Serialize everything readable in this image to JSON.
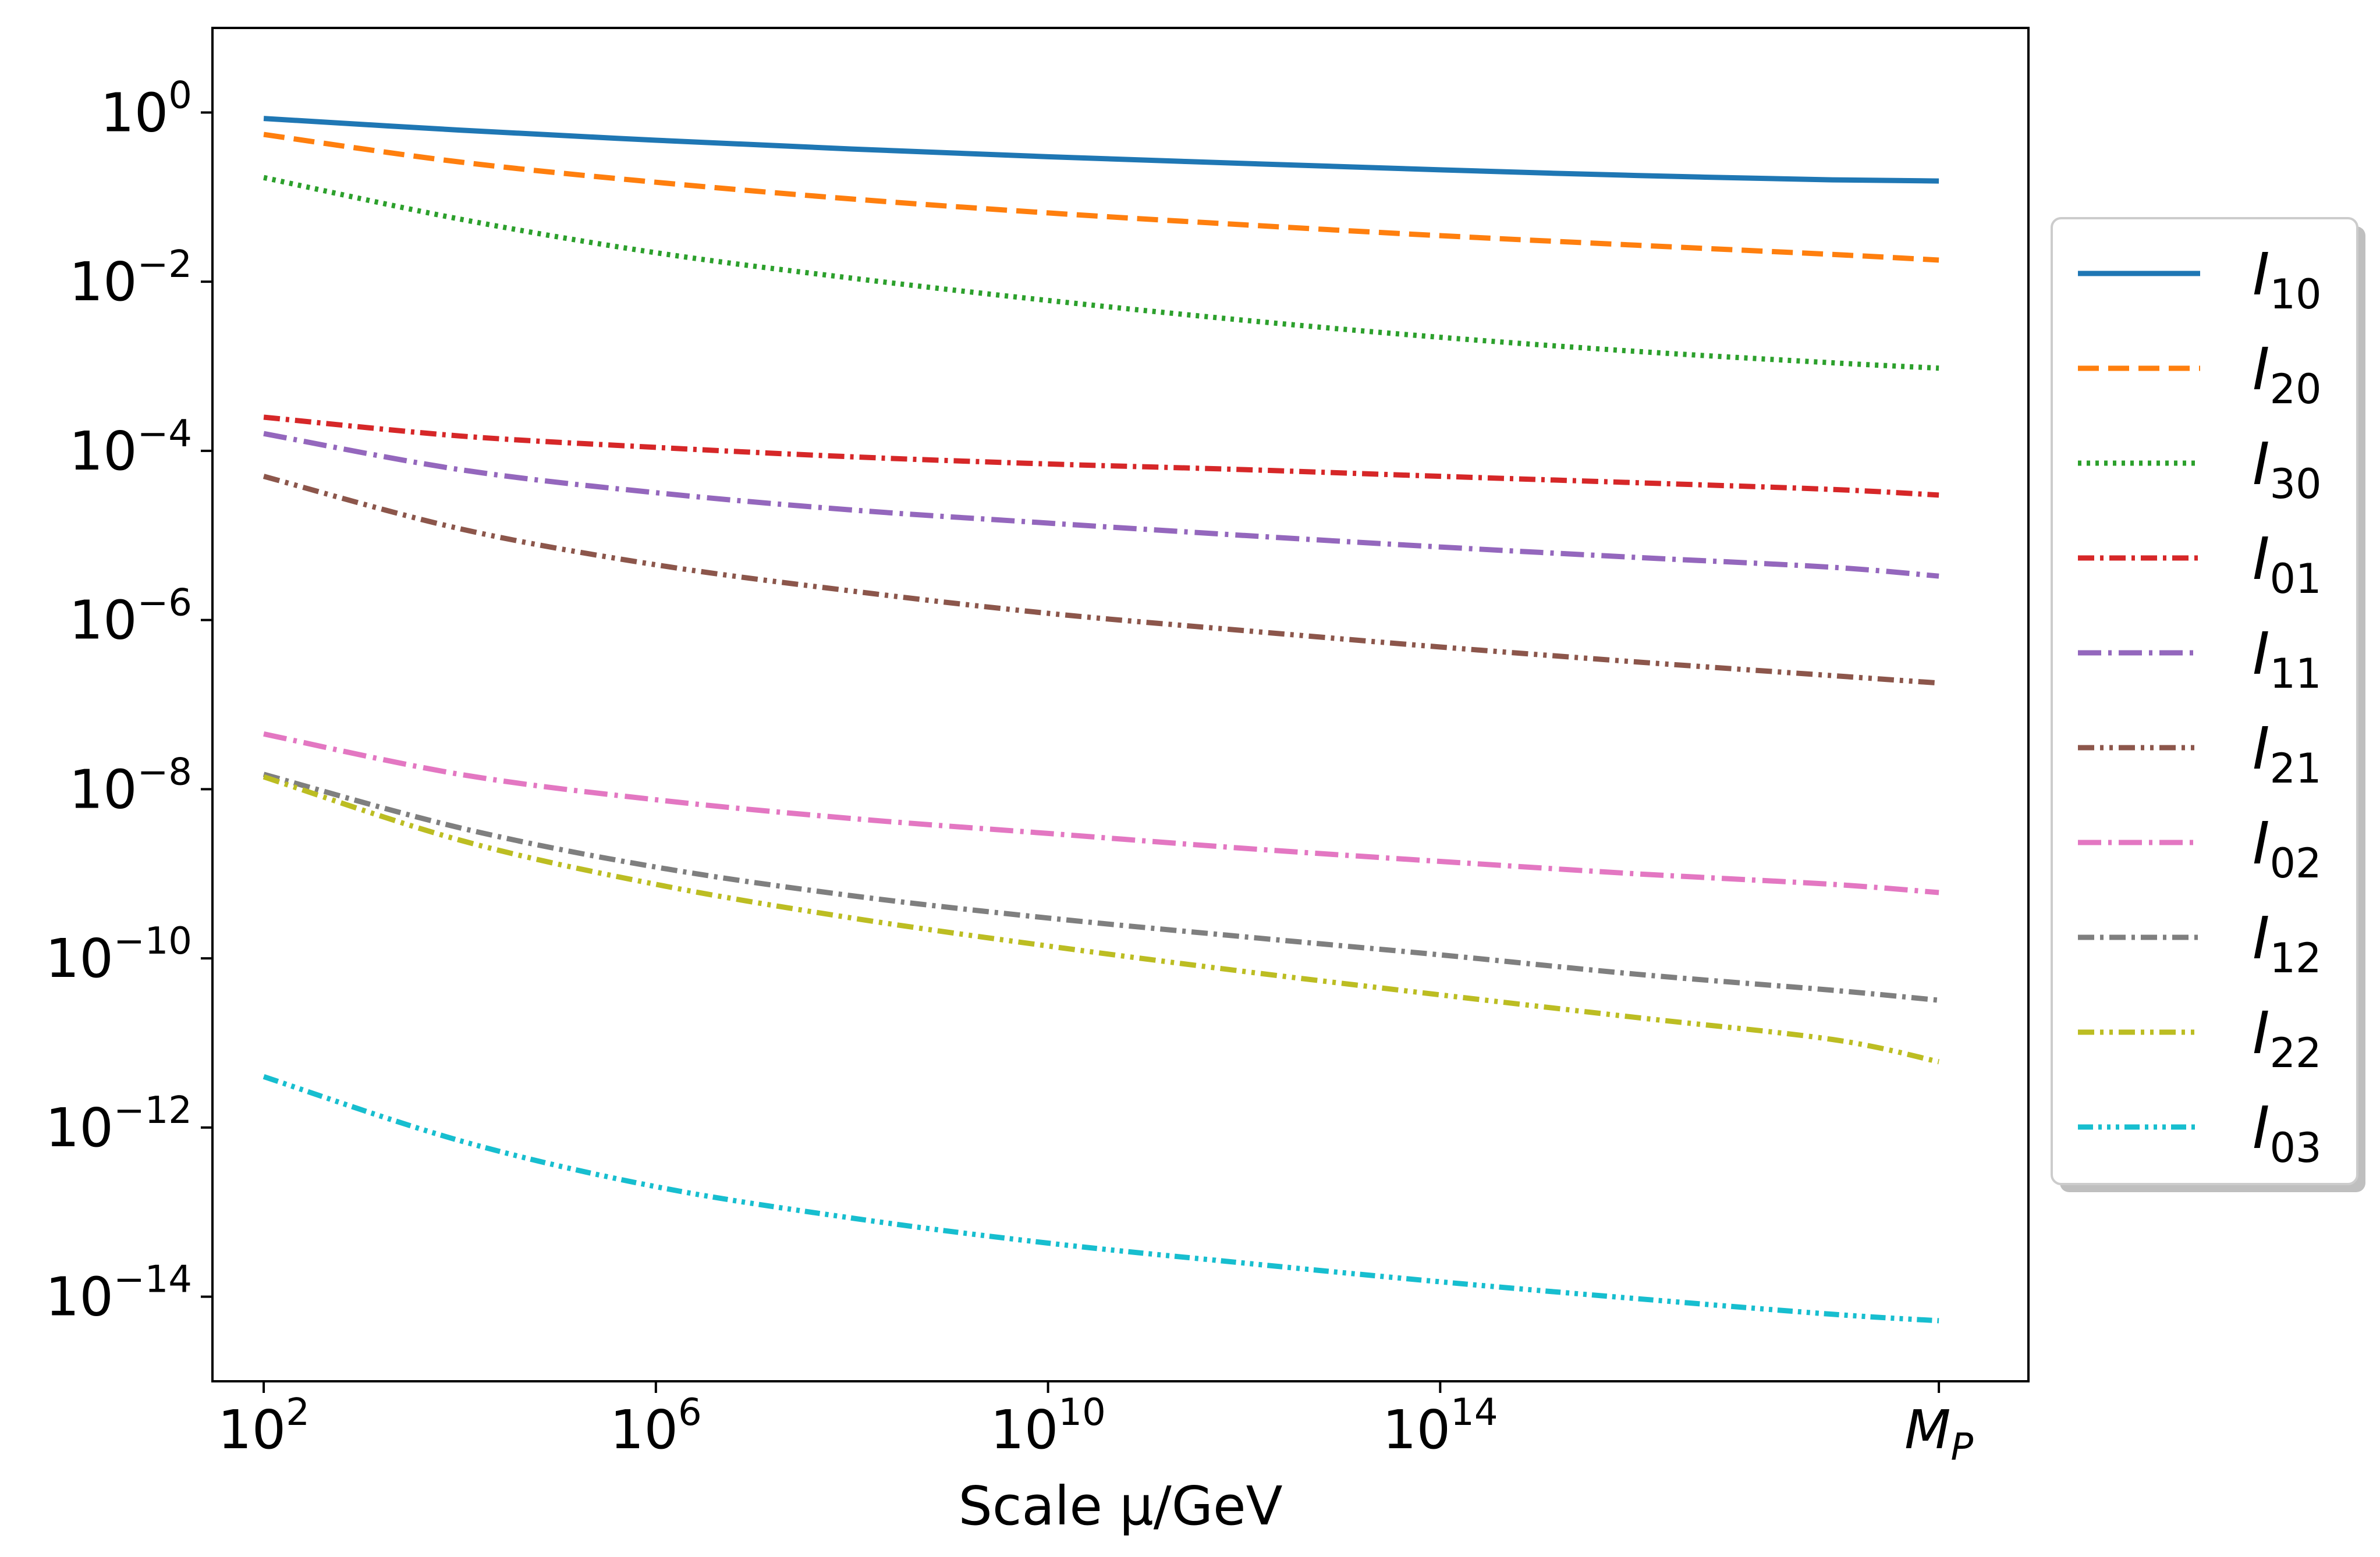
{
  "chart_data": {
    "type": "line",
    "title": "",
    "xlabel": "Scale  μ/GeV",
    "ylabel": "",
    "x_scale": "log",
    "y_scale": "log",
    "xlim": [
      30.0,
      1e+20
    ],
    "ylim": [
      1e-15,
      10.0
    ],
    "x_ticks": [
      {
        "value": 100.0,
        "base": "10",
        "exp": "2"
      },
      {
        "value": 1000000.0,
        "base": "10",
        "exp": "6"
      },
      {
        "value": 10000000000.0,
        "base": "10",
        "exp": "10"
      },
      {
        "value": 100000000000000.0,
        "base": "10",
        "exp": "14"
      },
      {
        "value": 1.22e+19,
        "base": "M",
        "sub": "P"
      }
    ],
    "y_ticks": [
      {
        "value": 1.0,
        "base": "10",
        "exp": "0"
      },
      {
        "value": 0.01,
        "base": "10",
        "exp": "−2"
      },
      {
        "value": 0.0001,
        "base": "10",
        "exp": "−4"
      },
      {
        "value": 1e-06,
        "base": "10",
        "exp": "−6"
      },
      {
        "value": 1e-08,
        "base": "10",
        "exp": "−8"
      },
      {
        "value": 1e-10,
        "base": "10",
        "exp": "−10"
      },
      {
        "value": 1e-12,
        "base": "10",
        "exp": "−12"
      },
      {
        "value": 1e-14,
        "base": "10",
        "exp": "−14"
      }
    ],
    "grid": false,
    "legend_position": "outside-right",
    "x": [
      100.0,
      10000.0,
      1000000.0,
      100000000.0,
      10000000000.0,
      1000000000000.0,
      100000000000000.0,
      1e+16,
      1e+18,
      1.22e+19
    ],
    "series": [
      {
        "name": "I",
        "sub": "10",
        "color": "#1f77b4",
        "dash": "solid",
        "values": [
          0.85,
          0.62,
          0.47,
          0.37,
          0.3,
          0.25,
          0.21,
          0.18,
          0.16,
          0.155
        ]
      },
      {
        "name": "I",
        "sub": "20",
        "color": "#ff7f0e",
        "dash": "dashed",
        "values": [
          0.55,
          0.26,
          0.15,
          0.095,
          0.065,
          0.047,
          0.035,
          0.027,
          0.021,
          0.018
        ]
      },
      {
        "name": "I",
        "sub": "30",
        "color": "#2ca02c",
        "dash": "dotted",
        "values": [
          0.17,
          0.055,
          0.022,
          0.011,
          0.006,
          0.0035,
          0.0022,
          0.0015,
          0.0011,
          0.00095
        ]
      },
      {
        "name": "I",
        "sub": "01",
        "color": "#d62728",
        "dash": "dashdot",
        "values": [
          0.00025,
          0.00015,
          0.00011,
          8.5e-05,
          7e-05,
          6e-05,
          5e-05,
          4.2e-05,
          3.5e-05,
          3e-05
        ]
      },
      {
        "name": "I",
        "sub": "11",
        "color": "#9467bd",
        "dash": "dashdot-long",
        "values": [
          0.00016,
          6e-05,
          3.2e-05,
          2e-05,
          1.4e-05,
          1e-05,
          7.3e-06,
          5.5e-06,
          4.2e-06,
          3.3e-06
        ]
      },
      {
        "name": "I",
        "sub": "21",
        "color": "#8c564b",
        "dash": "dashdotdot",
        "values": [
          5e-05,
          1.2e-05,
          4.5e-06,
          2.2e-06,
          1.2e-06,
          7.5e-07,
          4.8e-07,
          3.2e-07,
          2.2e-07,
          1.8e-07
        ]
      },
      {
        "name": "I",
        "sub": "02",
        "color": "#e377c2",
        "dash": "dashdot-long",
        "values": [
          4.5e-08,
          1.5e-08,
          7.5e-09,
          4.5e-09,
          3e-09,
          2e-09,
          1.4e-09,
          1e-09,
          7.5e-10,
          6e-10
        ]
      },
      {
        "name": "I",
        "sub": "12",
        "color": "#7f7f7f",
        "dash": "dashdot",
        "values": [
          1.5e-08,
          3.5e-09,
          1.2e-09,
          5.5e-10,
          3e-10,
          1.8e-10,
          1.1e-10,
          6.5e-11,
          4.2e-11,
          3.2e-11
        ]
      },
      {
        "name": "I",
        "sub": "22",
        "color": "#bcbd22",
        "dash": "dashdotdot",
        "values": [
          1.4e-08,
          2.5e-09,
          7.5e-10,
          3e-10,
          1.4e-10,
          7e-11,
          3.7e-11,
          2e-11,
          1.1e-11,
          6e-12
        ]
      },
      {
        "name": "I",
        "sub": "03",
        "color": "#17becf",
        "dash": "dashdotdotdot",
        "values": [
          4e-12,
          7e-13,
          2e-13,
          8.5e-14,
          4.3e-14,
          2.5e-14,
          1.5e-14,
          9.5e-15,
          6.2e-15,
          5.2e-15
        ]
      }
    ]
  }
}
